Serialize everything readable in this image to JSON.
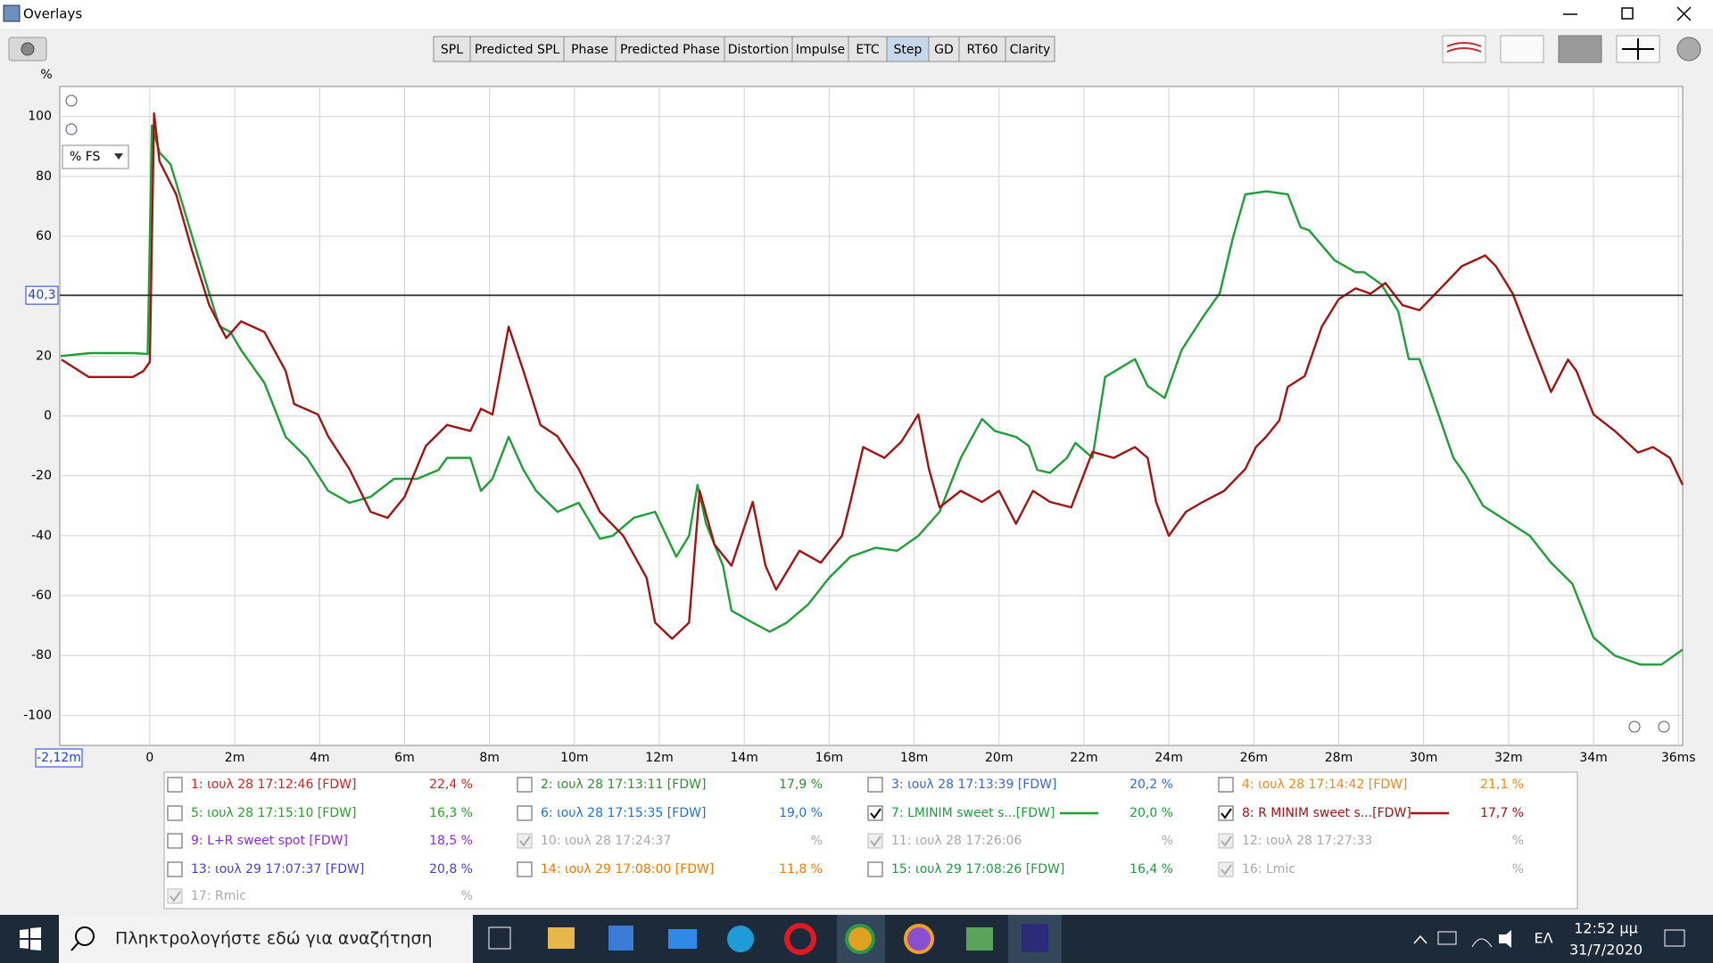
{
  "window": {
    "title": "Overlays"
  },
  "toolbar": [
    {
      "label": "SPL"
    },
    {
      "label": "Predicted SPL"
    },
    {
      "label": "Phase"
    },
    {
      "label": "Predicted Phase"
    },
    {
      "label": "Distortion"
    },
    {
      "label": "Impulse"
    },
    {
      "label": "ETC"
    },
    {
      "label": "Step",
      "active": true
    },
    {
      "label": "GD"
    },
    {
      "label": "RT60"
    },
    {
      "label": "Clarity"
    }
  ],
  "scale_dropdown": "% FS",
  "chart_data": {
    "type": "line",
    "y_label": "%",
    "xlim": [
      -2.12,
      36.1
    ],
    "ylim": [
      -110,
      110
    ],
    "x_start": {
      "value": -2.12,
      "label": "-2,12m"
    },
    "cursor": {
      "value": 40.3,
      "label": "40,3"
    },
    "cursor_color": "#222222",
    "grid": true,
    "yticks": [
      100,
      80,
      60,
      40,
      20,
      0,
      -20,
      -40,
      -60,
      -80,
      -100
    ],
    "xticks": [
      0,
      {
        "value": 2,
        "label": "2m"
      },
      {
        "value": 4,
        "label": "4m"
      },
      {
        "value": 6,
        "label": "6m"
      },
      {
        "value": 8,
        "label": "8m"
      },
      {
        "value": 10,
        "label": "10m"
      },
      {
        "value": 12,
        "label": "12m"
      },
      {
        "value": 14,
        "label": "14m"
      },
      {
        "value": 16,
        "label": "16m"
      },
      {
        "value": 18,
        "label": "18m"
      },
      {
        "value": 20,
        "label": "20m"
      },
      {
        "value": 22,
        "label": "22m"
      },
      {
        "value": 24,
        "label": "24m"
      },
      {
        "value": 26,
        "label": "26m"
      },
      {
        "value": 28,
        "label": "28m"
      },
      {
        "value": 30,
        "label": "30m"
      },
      {
        "value": 32,
        "label": "32m"
      },
      {
        "value": 34,
        "label": "34m"
      },
      {
        "value": 36,
        "label": "36ms"
      }
    ],
    "series": [
      {
        "color": "#1f9e3a",
        "x": [
          -2.1,
          -1.4,
          -0.4,
          -0.05,
          0.05,
          0.23,
          0.49,
          0.87,
          1.4,
          1.64,
          1.9,
          2.15,
          2.7,
          3.2,
          3.7,
          4.2,
          4.7,
          5.2,
          5.75,
          6.3,
          6.8,
          7.0,
          7.55,
          7.8,
          8.07,
          8.45,
          8.8,
          9.1,
          9.6,
          10.1,
          10.6,
          10.9,
          11.4,
          11.9,
          12.4,
          12.7,
          12.9,
          13.1,
          13.5,
          13.7,
          14.2,
          14.6,
          15.0,
          15.5,
          16.0,
          16.5,
          17.1,
          17.6,
          18.1,
          18.6,
          19.1,
          19.6,
          19.9,
          20.4,
          20.7,
          20.9,
          21.2,
          21.6,
          21.8,
          22.2,
          22.5,
          23.2,
          23.5,
          23.9,
          24.3,
          24.8,
          25.2,
          25.5,
          25.8,
          26.3,
          26.8,
          27.1,
          27.3,
          27.9,
          28.4,
          28.6,
          29.0,
          29.4,
          29.65,
          29.9,
          30.7,
          31.0,
          31.4,
          32.5,
          33.0,
          33.5,
          34.0,
          34.5,
          35.1,
          35.6,
          35.9,
          36.1
        ],
        "values": [
          20,
          21,
          21,
          20.7,
          97,
          88,
          84,
          66,
          41,
          30,
          28,
          22,
          11,
          -7,
          -14,
          -25,
          -29,
          -27,
          -21,
          -21,
          -18,
          -14,
          -14,
          -25,
          -21,
          -7,
          -18,
          -25,
          -32,
          -29,
          -41,
          -40,
          -34,
          -32,
          -47,
          -40,
          -23,
          -36,
          -50,
          -65,
          -69,
          -72,
          -69,
          -63,
          -54,
          -47,
          -44,
          -45,
          -40,
          -32,
          -14,
          -1,
          -5,
          -7,
          -10,
          -18,
          -19,
          -14,
          -9,
          -14,
          13,
          19,
          10,
          6,
          22,
          33,
          41,
          59,
          74,
          75,
          74,
          63,
          62,
          52,
          48,
          48,
          44,
          35,
          19,
          19,
          -14,
          -20,
          -30,
          -40,
          -49,
          -56,
          -74,
          -80,
          -83,
          -83,
          -80,
          -78
        ]
      },
      {
        "color": "#a01414",
        "x": [
          -2.08,
          -1.44,
          -0.4,
          -0.15,
          0,
          0.1,
          0.23,
          0.62,
          1.0,
          1.4,
          1.8,
          2.15,
          2.7,
          3.2,
          3.4,
          3.96,
          4.2,
          4.7,
          5.2,
          5.6,
          6.0,
          6.5,
          7.0,
          7.55,
          7.8,
          8.07,
          8.45,
          8.8,
          9.2,
          9.6,
          10.1,
          10.6,
          11.15,
          11.7,
          11.9,
          12.3,
          12.7,
          12.95,
          13.3,
          13.7,
          14.2,
          14.5,
          14.75,
          15.3,
          15.8,
          16.3,
          16.5,
          16.8,
          17.3,
          17.7,
          18.1,
          18.35,
          18.6,
          19.1,
          19.6,
          20.0,
          20.4,
          20.8,
          21.2,
          21.7,
          22.2,
          22.7,
          23.2,
          23.5,
          23.7,
          24.0,
          24.4,
          24.8,
          25.3,
          25.8,
          26.05,
          26.3,
          26.6,
          26.8,
          27.2,
          27.6,
          28.0,
          28.4,
          28.75,
          29.1,
          29.5,
          29.9,
          30.4,
          30.9,
          31.45,
          31.7,
          32.1,
          32.5,
          33.0,
          33.4,
          33.6,
          34.0,
          34.5,
          35.05,
          35.4,
          35.8,
          36.1
        ],
        "values": [
          18.8,
          13,
          13,
          15,
          18,
          101,
          85,
          74,
          55,
          37,
          26,
          31.6,
          28,
          15,
          4,
          0.5,
          -6.8,
          -17.7,
          -32,
          -34,
          -27,
          -10,
          -3,
          -5,
          2.4,
          0.5,
          29.8,
          15,
          -3,
          -6.8,
          -17.7,
          -32,
          -40,
          -54,
          -69,
          -74.4,
          -69,
          -25,
          -43,
          -50,
          -28.7,
          -50,
          -58,
          -45,
          -49,
          -40,
          -28.7,
          -10.4,
          -14,
          -8.6,
          0.5,
          -17.7,
          -30.5,
          -25,
          -28.7,
          -25,
          -36,
          -25,
          -28.7,
          -30.5,
          -12,
          -14,
          -10.4,
          -14,
          -28.7,
          -40,
          -32,
          -28.7,
          -25,
          -17.7,
          -10.4,
          -6.8,
          -1.5,
          9.7,
          13.3,
          29.8,
          39,
          42.6,
          40.8,
          44.4,
          37,
          35.3,
          42.6,
          50,
          53.6,
          50,
          40.8,
          26,
          8,
          18.8,
          15,
          0.5,
          -5,
          -12.2,
          -10.4,
          -14,
          -23
        ]
      }
    ]
  },
  "overlay_list": [
    {
      "label": "1: ιουλ 28 17:12:46 [FDW]",
      "percent": "22,4 %",
      "color": "#d42020",
      "checked": false,
      "enabled": true
    },
    {
      "label": "2: ιουλ 28 17:13:11 [FDW]",
      "percent": "17,9 %",
      "color": "#2f8f2f",
      "checked": false,
      "enabled": true
    },
    {
      "label": "3: ιουλ 28 17:13:39 [FDW]",
      "percent": "20,2 %",
      "color": "#3a66d0",
      "checked": false,
      "enabled": true
    },
    {
      "label": "4: ιουλ 28 17:14:42 [FDW]",
      "percent": "21,1 %",
      "color": "#f08a10",
      "checked": false,
      "enabled": true
    },
    {
      "label": "5: ιουλ 28 17:15:10 [FDW]",
      "percent": "16,3 %",
      "color": "#2aa02a",
      "checked": false,
      "enabled": true
    },
    {
      "label": "6: ιουλ 28 17:15:35 [FDW]",
      "percent": "19,0 %",
      "color": "#1e73d2",
      "checked": false,
      "enabled": true
    },
    {
      "label": "7: LMINIM sweet s...[FDW]",
      "percent": "20,0 %",
      "color": "#1f9e3a",
      "checked": true,
      "enabled": true
    },
    {
      "label": "8: R MINIM sweet s...[FDW]",
      "percent": "17,7 %",
      "color": "#a01414",
      "checked": true,
      "enabled": true
    },
    {
      "label": "9: L+R sweet spot [FDW]",
      "percent": "18,5 %",
      "color": "#8a2be2",
      "checked": false,
      "enabled": true
    },
    {
      "label": "10: ιουλ 28 17:24:37",
      "percent": "%",
      "color": "#a8a8a8",
      "checked": true,
      "enabled": false
    },
    {
      "label": "11: ιουλ 28 17:26:06",
      "percent": "%",
      "color": "#a8a8a8",
      "checked": true,
      "enabled": false
    },
    {
      "label": "12: ιουλ 28 17:27:33",
      "percent": "%",
      "color": "#a8a8a8",
      "checked": true,
      "enabled": false
    },
    {
      "label": "13: ιουλ 29 17:07:37 [FDW]",
      "percent": "20,8 %",
      "color": "#4a3fd0",
      "checked": false,
      "enabled": true
    },
    {
      "label": "14: ιουλ 29 17:08:00 [FDW]",
      "percent": "11,8 %",
      "color": "#f07a00",
      "checked": false,
      "enabled": true
    },
    {
      "label": "15: ιουλ 29 17:08:26 [FDW]",
      "percent": "16,4 %",
      "color": "#229a44",
      "checked": false,
      "enabled": true
    },
    {
      "label": "16: Lmic",
      "percent": "%",
      "color": "#a8a8a8",
      "checked": true,
      "enabled": false
    },
    {
      "label": "17: Rmic",
      "percent": "%",
      "color": "#a8a8a8",
      "checked": true,
      "enabled": false
    }
  ],
  "taskbar": {
    "search": "Πληκτρολογήστε εδώ για αναζήτηση",
    "language": "ΕΛ",
    "time": "12:52 μμ",
    "date": "31/7/2020"
  }
}
